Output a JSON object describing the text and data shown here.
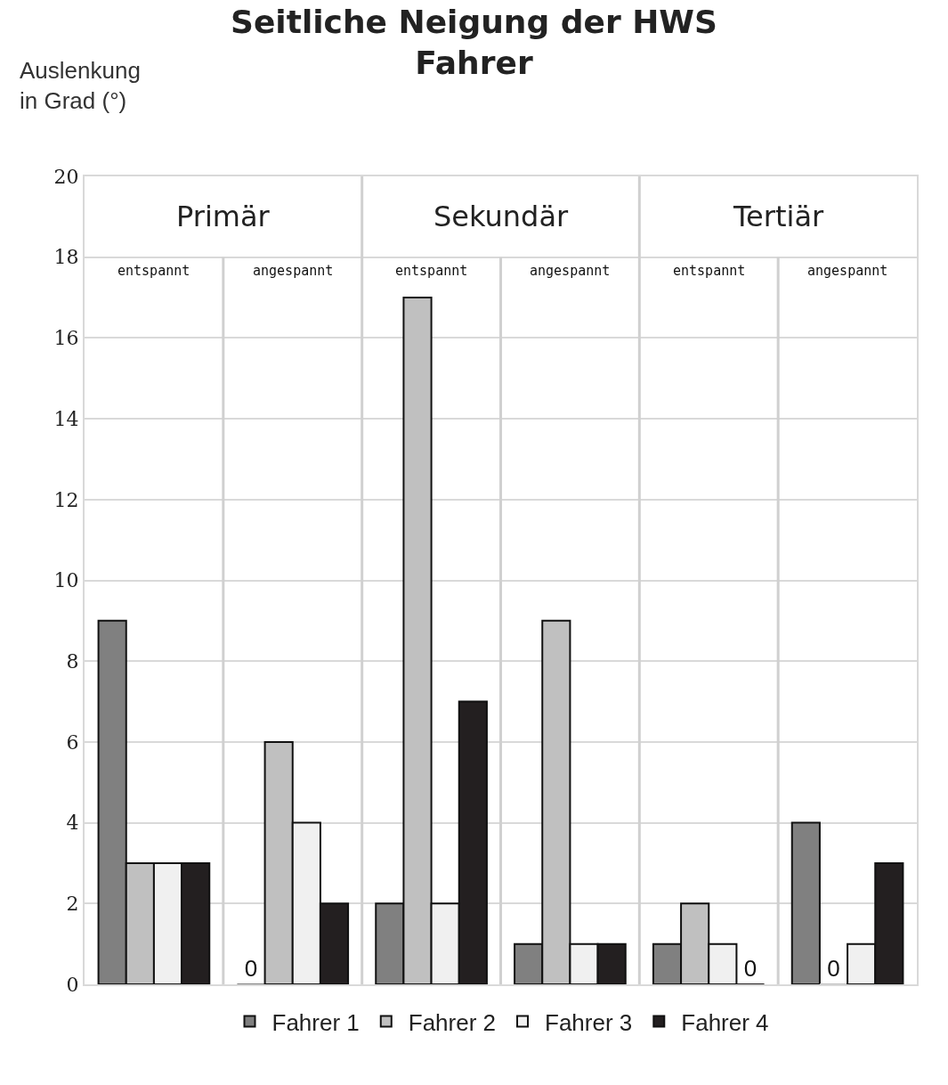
{
  "chart_data": {
    "type": "bar",
    "title": "Seitliche Neigung der HWS\nFahrer",
    "ylabel": "Auslenkung\nin Grad (°)",
    "categories": [
      "entspannt",
      "angespannt",
      "entspannt",
      "angespannt",
      "entspannt",
      "angespannt"
    ],
    "annotations": [
      "Primär",
      "Sekundär",
      "Tertiär"
    ],
    "series": [
      {
        "name": "Fahrer 1",
        "color": "#808080",
        "values": [
          9,
          0,
          2,
          1,
          1,
          4
        ],
        "value_labels": [
          null,
          "0",
          null,
          null,
          null,
          null
        ]
      },
      {
        "name": "Fahrer 2",
        "color": "#c0c0c0",
        "values": [
          3,
          6,
          17,
          9,
          2,
          0
        ],
        "value_labels": [
          null,
          null,
          null,
          null,
          null,
          "0"
        ]
      },
      {
        "name": "Fahrer 3",
        "color": "#f0f0f0",
        "values": [
          3,
          4,
          2,
          1,
          1,
          1
        ]
      },
      {
        "name": "Fahrer 4",
        "color": "#231f20",
        "values": [
          3,
          2,
          7,
          1,
          0,
          3
        ],
        "value_labels": [
          null,
          null,
          null,
          null,
          "0",
          null
        ]
      }
    ],
    "ylim": [
      0,
      20
    ],
    "yticks": [
      0,
      2,
      4,
      6,
      8,
      10,
      12,
      14,
      16,
      18,
      20
    ],
    "grid": "y",
    "legend": "bottom"
  }
}
